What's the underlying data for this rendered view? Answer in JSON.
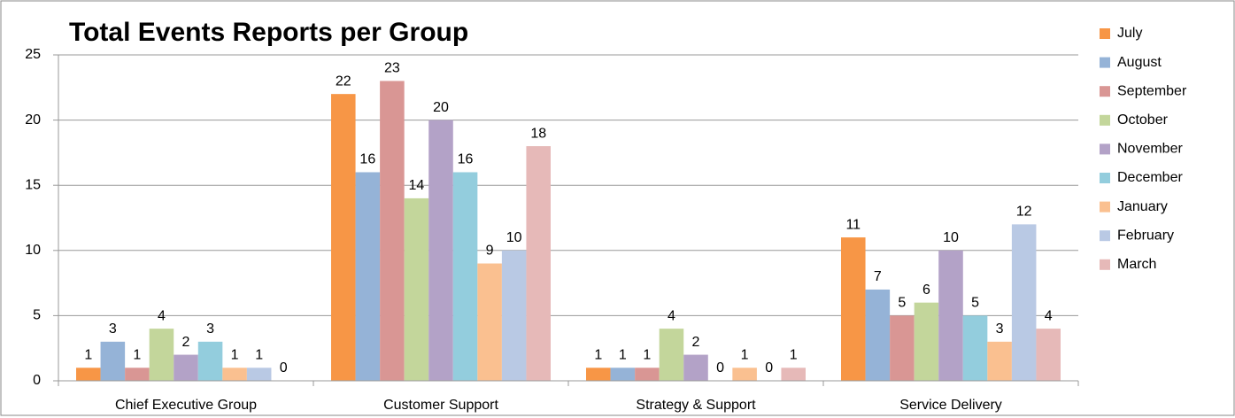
{
  "chart_data": {
    "type": "bar",
    "title": "Total Events Reports per Group",
    "categories": [
      "Chief Executive Group",
      "Customer Support",
      "Strategy & Support",
      "Service Delivery"
    ],
    "series": [
      {
        "name": "July",
        "color": "#f79646",
        "values": [
          1,
          22,
          1,
          11
        ]
      },
      {
        "name": "August",
        "color": "#95b3d7",
        "values": [
          3,
          16,
          1,
          7
        ]
      },
      {
        "name": "September",
        "color": "#d99694",
        "values": [
          1,
          23,
          1,
          5
        ]
      },
      {
        "name": "October",
        "color": "#c3d69b",
        "values": [
          4,
          14,
          4,
          6
        ]
      },
      {
        "name": "November",
        "color": "#b3a2c7",
        "values": [
          2,
          20,
          2,
          10
        ]
      },
      {
        "name": "December",
        "color": "#93cddd",
        "values": [
          3,
          16,
          0,
          5
        ]
      },
      {
        "name": "January",
        "color": "#fac090",
        "values": [
          1,
          9,
          1,
          3
        ]
      },
      {
        "name": "February",
        "color": "#b9c9e4",
        "values": [
          1,
          10,
          0,
          12
        ]
      },
      {
        "name": "March",
        "color": "#e6b9b8",
        "values": [
          0,
          18,
          1,
          4
        ]
      }
    ],
    "ylim": [
      0,
      25
    ],
    "yticks": [
      0,
      5,
      10,
      15,
      20,
      25
    ],
    "grid": true,
    "legend": "right"
  }
}
